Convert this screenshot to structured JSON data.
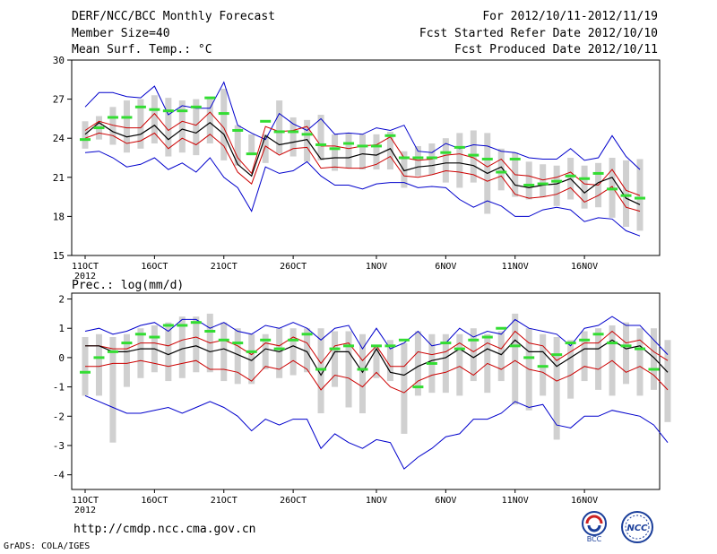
{
  "header": {
    "title": "DERF/NCC/BCC Monthly Forecast",
    "member_size": "Member Size=40",
    "variable": "Mean Surf. Temp.: °C",
    "forecast_range": "For 2012/10/11-2012/11/19",
    "fcst_started": "Fcst Started Refer Date 2012/10/10",
    "fcst_produced": "Fcst Produced Date 2012/10/11"
  },
  "footer": {
    "url": "http://cmdp.ncc.cma.gov.cn",
    "grads": "GrADS: COLA/IGES",
    "logo_bcc": "BCC",
    "logo_ncc": "NCC"
  },
  "colors": {
    "ensemble_range": "#0000cc",
    "ensemble_mean": "#000000",
    "std_band": "#cc0000",
    "member_box": "#d0d0d0",
    "observed": "#33dd33"
  },
  "chart_data": [
    {
      "name": "temperature",
      "type": "line",
      "title": "Mean Surf. Temp.: °C",
      "ylim": [
        15,
        30
      ],
      "yticks": [
        15,
        18,
        21,
        24,
        27,
        30
      ],
      "xlim": [
        0,
        40
      ],
      "xtick_pos": [
        0,
        5,
        10,
        15,
        21,
        26,
        31,
        36
      ],
      "xtick_labels": [
        "11OCT",
        "16OCT",
        "21OCT",
        "26OCT",
        "1NOV",
        "6NOV",
        "11NOV",
        "16NOV"
      ],
      "year_label": "2012",
      "series": [
        {
          "name": "max",
          "values": [
            26.4,
            27.5,
            27.5,
            27.2,
            27.1,
            28,
            25.8,
            26.5,
            26.3,
            26.3,
            28.3,
            25,
            24.4,
            23.9,
            25.9,
            25.1,
            24.6,
            25.5,
            24.3,
            24.4,
            24.3,
            24.8,
            24.6,
            25,
            23,
            22.9,
            23.6,
            23.2,
            23.5,
            23.4,
            23,
            22.9,
            22.5,
            22.4,
            22.4,
            23.2,
            22.3,
            22.5,
            24.2,
            22.6,
            21.6
          ]
        },
        {
          "name": "upper",
          "values": [
            24.6,
            25.3,
            25,
            24.8,
            24.8,
            25.9,
            24.6,
            25.3,
            25,
            26,
            24.8,
            22.5,
            21.3,
            24.9,
            24.5,
            24.6,
            24.9,
            23.4,
            23.4,
            23.2,
            23.4,
            23.5,
            24.1,
            22.5,
            22.3,
            22.4,
            22.7,
            22.8,
            22.5,
            21.8,
            22.4,
            21.2,
            21.1,
            20.8,
            21,
            21.4,
            20.5,
            20.4,
            21.6,
            20,
            19.6
          ]
        },
        {
          "name": "mean",
          "values": [
            24.3,
            25.2,
            24.5,
            24.1,
            24.3,
            25,
            23.9,
            24.7,
            24.4,
            25.2,
            24.3,
            22,
            21.1,
            24.2,
            23.5,
            23.7,
            23.9,
            22.4,
            22.5,
            22.5,
            22.8,
            22.7,
            23.2,
            21.5,
            21.8,
            21.9,
            22.1,
            22.1,
            21.9,
            21.3,
            21.8,
            20.4,
            20.2,
            20.4,
            20.5,
            20.9,
            19.8,
            20.6,
            21,
            19.4,
            18.9
          ]
        },
        {
          "name": "lower",
          "values": [
            24,
            24.4,
            24.2,
            23.6,
            23.8,
            24.4,
            23.2,
            24,
            23.5,
            24.3,
            23.4,
            21.4,
            20.5,
            23.4,
            22.7,
            23.2,
            23.3,
            21.7,
            21.8,
            21.7,
            21.7,
            22,
            22.6,
            21.1,
            21,
            21.2,
            21.5,
            21.4,
            21.2,
            20.7,
            21.1,
            19.7,
            19.4,
            19.5,
            19.7,
            20.2,
            19.1,
            19.6,
            20.3,
            18.7,
            18.4
          ]
        },
        {
          "name": "min",
          "values": [
            22.9,
            23,
            22.5,
            21.8,
            22,
            22.5,
            21.6,
            22.1,
            21.4,
            22.5,
            21,
            20.2,
            18.4,
            21.8,
            21.3,
            21.5,
            22.2,
            21.1,
            20.4,
            20.4,
            20.1,
            20.5,
            20.6,
            20.6,
            20.2,
            20.3,
            20.2,
            19.3,
            18.7,
            19.2,
            18.8,
            18,
            18,
            18.5,
            18.7,
            18.5,
            17.6,
            17.9,
            17.8,
            16.9,
            16.5
          ]
        },
        {
          "name": "box_top",
          "values": [
            25.3,
            25.7,
            26.4,
            26.9,
            27,
            27.3,
            27.1,
            26.9,
            27,
            27,
            27.8,
            25,
            24.3,
            24.3,
            26.9,
            25.6,
            25.4,
            25.8,
            24.3,
            24.4,
            24.3,
            24.3,
            24.5,
            23,
            23.4,
            23.6,
            24,
            24.4,
            24.6,
            24.4,
            23.2,
            22.9,
            22.2,
            22,
            21.9,
            22.5,
            21.9,
            22.1,
            22.5,
            22.3,
            22.4
          ]
        },
        {
          "name": "box_bottom",
          "values": [
            23.2,
            23.9,
            23.5,
            22.9,
            23.2,
            23.6,
            22.6,
            22.9,
            22.7,
            23.6,
            22.3,
            21.9,
            22.7,
            22.1,
            22.8,
            22.6,
            22.2,
            22.3,
            21.5,
            21.7,
            21.6,
            21.6,
            21.6,
            20.2,
            21.1,
            21.2,
            20.6,
            20.2,
            20.6,
            18.2,
            20,
            19.5,
            19.3,
            19.5,
            18.8,
            19.3,
            18.6,
            18.7,
            17.9,
            17.2,
            16.9
          ]
        },
        {
          "name": "observed",
          "values": [
            23.9,
            24.8,
            25.6,
            25.6,
            26.4,
            26.2,
            26.1,
            26.1,
            26.4,
            27.1,
            25.9,
            24.6,
            22.8,
            25.3,
            24.5,
            24.5,
            24.3,
            23.5,
            23.2,
            23.6,
            23.4,
            23.4,
            24.2,
            22.5,
            22.5,
            22.5,
            22.9,
            23.3,
            22.7,
            22.4,
            21.4,
            22.4,
            20.4,
            20.5,
            20.7,
            21.1,
            20.9,
            21.3,
            20.1,
            19.6,
            19.4
          ]
        }
      ]
    },
    {
      "name": "precipitation",
      "type": "line",
      "title": "Prec.: log(mm/d)",
      "ylim": [
        -4.5,
        2.2
      ],
      "yticks": [
        -4,
        -3,
        -2,
        -1,
        0,
        1,
        2
      ],
      "xlim": [
        0,
        40
      ],
      "xtick_pos": [
        0,
        5,
        10,
        15,
        21,
        26,
        31,
        36
      ],
      "xtick_labels": [
        "11OCT",
        "16OCT",
        "21OCT",
        "26OCT",
        "1NOV",
        "6NOV",
        "11NOV",
        "16NOV"
      ],
      "year_label": "2012",
      "series": [
        {
          "name": "max",
          "values": [
            0.9,
            1,
            0.8,
            0.9,
            1.1,
            1.2,
            0.9,
            1.3,
            1.3,
            1,
            1.2,
            0.9,
            0.8,
            1.1,
            1,
            1.2,
            1,
            0.6,
            1,
            1.1,
            0.3,
            1,
            0.3,
            0.5,
            0.9,
            0.4,
            0.5,
            1,
            0.7,
            0.9,
            0.8,
            1.3,
            1,
            0.9,
            0.8,
            0.4,
            1,
            1.1,
            1.4,
            1.1,
            1.1,
            0.6,
            0.1
          ]
        },
        {
          "name": "upper",
          "values": [
            0.4,
            0.4,
            0.3,
            0.3,
            0.5,
            0.5,
            0.4,
            0.6,
            0.7,
            0.5,
            0.6,
            0.4,
            0.1,
            0.5,
            0.4,
            0.7,
            0.5,
            -0.2,
            0.4,
            0.5,
            -0.1,
            0.4,
            -0.3,
            -0.3,
            0.2,
            0.1,
            0.2,
            0.5,
            0.2,
            0.5,
            0.3,
            0.9,
            0.5,
            0.4,
            -0.1,
            0.2,
            0.5,
            0.5,
            0.9,
            0.5,
            0.6,
            0.2,
            -0.1
          ]
        },
        {
          "name": "mean",
          "values": [
            0.4,
            0.4,
            0.2,
            0.2,
            0.3,
            0.3,
            0.1,
            0.3,
            0.4,
            0.2,
            0.3,
            0.1,
            -0.1,
            0.3,
            0.2,
            0.4,
            0.2,
            -0.6,
            0.2,
            0.2,
            -0.5,
            0.3,
            -0.5,
            -0.6,
            -0.3,
            -0.1,
            0,
            0.3,
            0,
            0.3,
            0.1,
            0.6,
            0.2,
            0.2,
            -0.3,
            0,
            0.3,
            0.3,
            0.6,
            0.3,
            0.4,
            0,
            -0.5
          ]
        },
        {
          "name": "lower",
          "values": [
            -0.3,
            -0.3,
            -0.2,
            -0.2,
            -0.1,
            -0.2,
            -0.3,
            -0.2,
            -0.1,
            -0.4,
            -0.4,
            -0.5,
            -0.8,
            -0.3,
            -0.4,
            -0.1,
            -0.4,
            -1.1,
            -0.6,
            -0.7,
            -1,
            -0.5,
            -1,
            -1.2,
            -0.8,
            -0.6,
            -0.5,
            -0.3,
            -0.6,
            -0.2,
            -0.4,
            -0.1,
            -0.4,
            -0.5,
            -0.8,
            -0.6,
            -0.3,
            -0.4,
            -0.1,
            -0.5,
            -0.3,
            -0.6,
            -1.1
          ]
        },
        {
          "name": "min",
          "values": [
            -1.3,
            -1.5,
            -1.7,
            -1.9,
            -1.9,
            -1.8,
            -1.7,
            -1.9,
            -1.7,
            -1.5,
            -1.7,
            -2,
            -2.5,
            -2.1,
            -2.3,
            -2.1,
            -2.1,
            -3.1,
            -2.6,
            -2.9,
            -3.1,
            -2.8,
            -2.9,
            -3.8,
            -3.4,
            -3.1,
            -2.7,
            -2.6,
            -2.1,
            -2.1,
            -1.9,
            -1.5,
            -1.7,
            -1.6,
            -2.3,
            -2.4,
            -2,
            -2,
            -1.8,
            -1.9,
            -2,
            -2.3,
            -2.9
          ]
        },
        {
          "name": "box_top",
          "values": [
            0.7,
            0.8,
            0.7,
            0.8,
            1,
            1.1,
            1.2,
            1.4,
            1.4,
            1.5,
            1.2,
            1,
            0.8,
            0.8,
            1,
            1,
            1,
            1,
            0.9,
            0.9,
            0.8,
            0.4,
            0.6,
            0.5,
            0.9,
            0.8,
            0.8,
            0.8,
            1,
            0.8,
            0.9,
            1.5,
            1,
            0.8,
            0.7,
            0.6,
            0.9,
            1,
            1.1,
            1.2,
            1,
            1,
            0.6
          ]
        },
        {
          "name": "box_bottom",
          "values": [
            -1.3,
            -1.3,
            -2.9,
            -1,
            -0.7,
            -0.5,
            -0.8,
            -0.7,
            -0.5,
            -0.5,
            -0.8,
            -0.9,
            -0.9,
            -0.4,
            -0.7,
            -0.6,
            -0.5,
            -1.9,
            -1,
            -1.7,
            -1.9,
            -0.7,
            -0.8,
            -2.6,
            -1.3,
            -1.2,
            -1.2,
            -1.3,
            -0.8,
            -1.2,
            -0.8,
            -1.6,
            -1.8,
            -1.3,
            -2.8,
            -1.4,
            -0.8,
            -1.1,
            -1.3,
            -0.9,
            -1.3,
            -1.1,
            -2.2
          ]
        },
        {
          "name": "observed",
          "values": [
            -0.5,
            0,
            0.2,
            0.5,
            0.8,
            0.7,
            1.1,
            1.1,
            1.2,
            0.9,
            0.6,
            0.5,
            0.2,
            0.6,
            0.3,
            0.6,
            0.8,
            -0.4,
            0.3,
            0.4,
            -0.4,
            0.4,
            0.4,
            0.6,
            -1,
            -0.2,
            0.5,
            0.3,
            0.6,
            0.7,
            1,
            0.4,
            0,
            -0.3,
            0.1,
            0.5,
            0.6,
            0.8,
            0.5,
            0.4,
            0.3,
            -0.4
          ]
        }
      ]
    }
  ]
}
